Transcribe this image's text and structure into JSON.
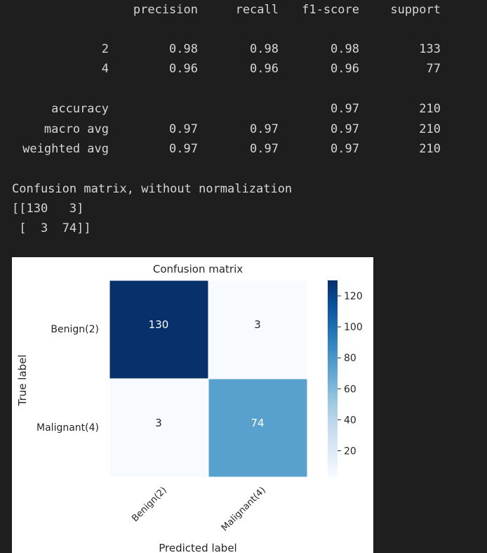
{
  "report": {
    "headers": [
      "precision",
      "recall",
      "f1-score",
      "support"
    ],
    "rows": [
      {
        "label": "2",
        "precision": "0.98",
        "recall": "0.98",
        "f1": "0.98",
        "support": "133"
      },
      {
        "label": "4",
        "precision": "0.96",
        "recall": "0.96",
        "f1": "0.96",
        "support": "77"
      }
    ],
    "summary": [
      {
        "label": "accuracy",
        "precision": "",
        "recall": "",
        "f1": "0.97",
        "support": "210"
      },
      {
        "label": "macro avg",
        "precision": "0.97",
        "recall": "0.97",
        "f1": "0.97",
        "support": "210"
      },
      {
        "label": "weighted avg",
        "precision": "0.97",
        "recall": "0.97",
        "f1": "0.97",
        "support": "210"
      }
    ]
  },
  "matrix_text": {
    "heading": "Confusion matrix, without normalization",
    "line1": "[[130   3]",
    "line2": " [  3  74]]"
  },
  "colors": {
    "background": "#1e1e1e",
    "text": "#d6d6d6",
    "cmap_low": "#f7fbff",
    "cmap_high": "#08306b"
  },
  "chart_data": {
    "type": "heatmap",
    "title": "Confusion matrix",
    "xlabel": "Predicted label",
    "ylabel": "True label",
    "x_categories": [
      "Benign(2)",
      "Malignant(4)"
    ],
    "y_categories": [
      "Benign(2)",
      "Malignant(4)"
    ],
    "values": [
      [
        130,
        3
      ],
      [
        3,
        74
      ]
    ],
    "colorbar": {
      "range": [
        3,
        130
      ],
      "ticks": [
        20,
        40,
        60,
        80,
        100,
        120
      ],
      "cmap": "Blues"
    }
  }
}
